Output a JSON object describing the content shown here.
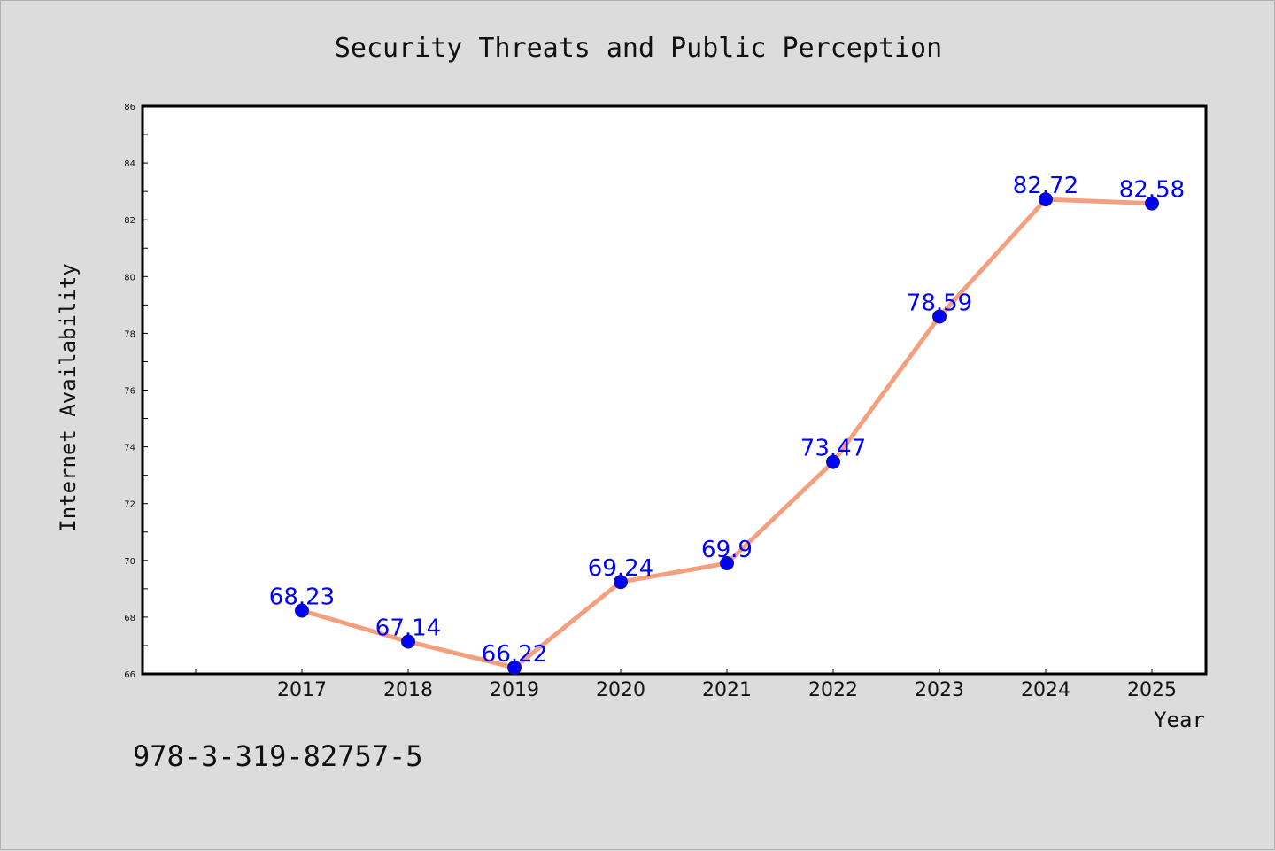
{
  "chart_data": {
    "type": "line",
    "title": "Security Threats and Public Perception",
    "xlabel": "Year",
    "ylabel": "Internet Availability",
    "categories": [
      "2017",
      "2018",
      "2019",
      "2020",
      "2021",
      "2022",
      "2023",
      "2024",
      "2025"
    ],
    "series": [
      {
        "values": [
          68.23,
          67.14,
          66.22,
          69.24,
          69.9,
          73.47,
          78.59,
          82.72,
          82.58
        ],
        "data_labels": [
          "68.23",
          "67.14",
          "66.22",
          "69.24",
          "69.9",
          "73.47",
          "78.59",
          "82.72",
          "82.58"
        ],
        "line_color": "#f4a07f",
        "marker_color": "#0000ff"
      }
    ],
    "ylim": [
      66,
      86
    ],
    "yticks": [
      "66",
      "68",
      "70",
      "72",
      "74",
      "76",
      "78",
      "80",
      "82",
      "84",
      "86"
    ],
    "grid": false,
    "legend": "none"
  },
  "footer": {
    "isbn": "978-3-319-82757-5"
  },
  "colors": {
    "background": "#dcdcdc",
    "plot_background": "#ffffff",
    "label_color": "#0000ff"
  }
}
